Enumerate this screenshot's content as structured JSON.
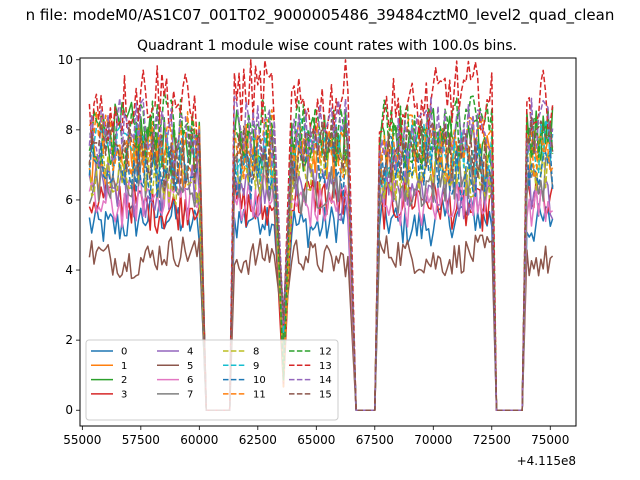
{
  "figure": {
    "suptitle": "n file: modeM0/AS1C07_001T02_9000005486_39484cztM0_level2_quad_clean",
    "title": "Quadrant 1 module wise count rates with 100.0s bins.",
    "offset_label": "+4.115e8"
  },
  "chart_data": {
    "type": "line",
    "title": "Quadrant 1 module wise count rates with 100.0s bins.",
    "xlabel": "",
    "ylabel": "",
    "xlim": [
      54900,
      76100
    ],
    "ylim": [
      -0.45,
      10.05
    ],
    "x_offset": 411500000,
    "grid": false,
    "legend_placement": "lower-left",
    "legend_columns": 4,
    "x_ticks": [
      55000,
      57500,
      60000,
      62500,
      65000,
      67500,
      70000,
      72500,
      75000
    ],
    "x_tick_labels": [
      "55000",
      "57500",
      "60000",
      "62500",
      "65000",
      "67500",
      "70000",
      "72500",
      "75000"
    ],
    "y_ticks": [
      0,
      2,
      4,
      6,
      8,
      10
    ],
    "y_tick_labels": [
      "0",
      "2",
      "4",
      "6",
      "8",
      "10"
    ],
    "segments": [
      {
        "x_start": 55300,
        "x_end": 60000
      },
      {
        "x_start": 61500,
        "x_end": 63250
      },
      {
        "x_start": 63950,
        "x_end": 66400
      },
      {
        "x_start": 67700,
        "x_end": 72500
      },
      {
        "x_start": 74000,
        "x_end": 75100
      }
    ],
    "zero_gaps": [
      {
        "x_start": 60300,
        "x_end": 61300
      },
      {
        "x_start": 66700,
        "x_end": 67500
      },
      {
        "x_start": 72700,
        "x_end": 73800
      }
    ],
    "series": [
      {
        "name": "0",
        "color": "#1f77b4",
        "dashed": false,
        "level": 5.4
      },
      {
        "name": "1",
        "color": "#ff7f0e",
        "dashed": false,
        "level": 7.2
      },
      {
        "name": "2",
        "color": "#2ca02c",
        "dashed": false,
        "level": 7.7
      },
      {
        "name": "3",
        "color": "#d62728",
        "dashed": false,
        "level": 5.9
      },
      {
        "name": "4",
        "color": "#9467bd",
        "dashed": false,
        "level": 6.3
      },
      {
        "name": "5",
        "color": "#8c564b",
        "dashed": false,
        "level": 4.4
      },
      {
        "name": "6",
        "color": "#e377c2",
        "dashed": false,
        "level": 6.0
      },
      {
        "name": "7",
        "color": "#7f7f7f",
        "dashed": false,
        "level": 6.5
      },
      {
        "name": "8",
        "color": "#bcbd22",
        "dashed": true,
        "level": 6.8
      },
      {
        "name": "9",
        "color": "#17becf",
        "dashed": true,
        "level": 7.4
      },
      {
        "name": "10",
        "color": "#1f77b4",
        "dashed": true,
        "level": 7.0
      },
      {
        "name": "11",
        "color": "#ff7f0e",
        "dashed": true,
        "level": 7.6
      },
      {
        "name": "12",
        "color": "#2ca02c",
        "dashed": true,
        "level": 8.0
      },
      {
        "name": "13",
        "color": "#d62728",
        "dashed": true,
        "level": 8.8
      },
      {
        "name": "14",
        "color": "#9467bd",
        "dashed": true,
        "level": 7.9
      },
      {
        "name": "15",
        "color": "#8c564b",
        "dashed": true,
        "level": 7.3
      }
    ]
  }
}
